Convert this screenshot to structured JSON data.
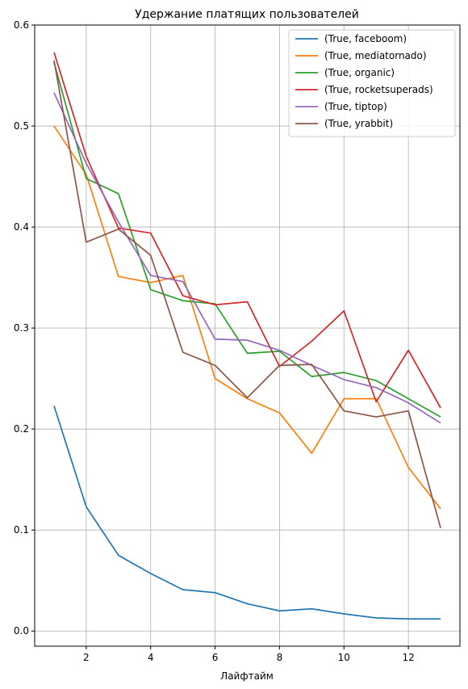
{
  "chart_data": {
    "type": "line",
    "title": "Удержание платящих пользователей",
    "xlabel": "Лайфтайм",
    "ylabel": "",
    "xlim": [
      0.4,
      13.6
    ],
    "ylim": [
      -0.015,
      0.6
    ],
    "xticks": [
      2,
      4,
      6,
      8,
      10,
      12
    ],
    "yticks": [
      0.0,
      0.1,
      0.2,
      0.3,
      0.4,
      0.5,
      0.6
    ],
    "xtick_labels": [
      "2",
      "4",
      "6",
      "8",
      "10",
      "12"
    ],
    "ytick_labels": [
      "0.0",
      "0.1",
      "0.2",
      "0.3",
      "0.4",
      "0.5",
      "0.6"
    ],
    "grid": true,
    "legend_position": "top-right",
    "x": [
      1,
      2,
      3,
      4,
      5,
      6,
      7,
      8,
      9,
      10,
      11,
      12,
      13
    ],
    "series": [
      {
        "name": "(True, faceboom)",
        "color": "#1f77b4",
        "values": [
          0.223,
          0.123,
          0.075,
          0.057,
          0.041,
          0.038,
          0.027,
          0.02,
          0.022,
          0.017,
          0.013,
          0.012,
          0.012
        ]
      },
      {
        "name": "(True, mediatornado)",
        "color": "#ff7f0e",
        "values": [
          0.5,
          0.452,
          0.351,
          0.345,
          0.352,
          0.25,
          0.23,
          0.216,
          0.176,
          0.23,
          0.23,
          0.162,
          0.121
        ]
      },
      {
        "name": "(True, organic)",
        "color": "#2ca02c",
        "values": [
          0.563,
          0.448,
          0.433,
          0.338,
          0.327,
          0.324,
          0.275,
          0.277,
          0.252,
          0.256,
          0.248,
          0.23,
          0.212
        ]
      },
      {
        "name": "(True, rocketsuperads)",
        "color": "#d62728",
        "values": [
          0.573,
          0.47,
          0.399,
          0.394,
          0.332,
          0.323,
          0.326,
          0.262,
          0.287,
          0.317,
          0.227,
          0.278,
          0.221
        ]
      },
      {
        "name": "(True, tiptop)",
        "color": "#9467bd",
        "values": [
          0.533,
          0.463,
          0.405,
          0.352,
          0.346,
          0.289,
          0.288,
          0.278,
          0.263,
          0.249,
          0.241,
          0.226,
          0.206
        ]
      },
      {
        "name": "(True, yrabbit)",
        "color": "#8c564b",
        "values": [
          0.565,
          0.385,
          0.398,
          0.372,
          0.276,
          0.263,
          0.231,
          0.263,
          0.264,
          0.218,
          0.212,
          0.218,
          0.102
        ]
      }
    ]
  }
}
